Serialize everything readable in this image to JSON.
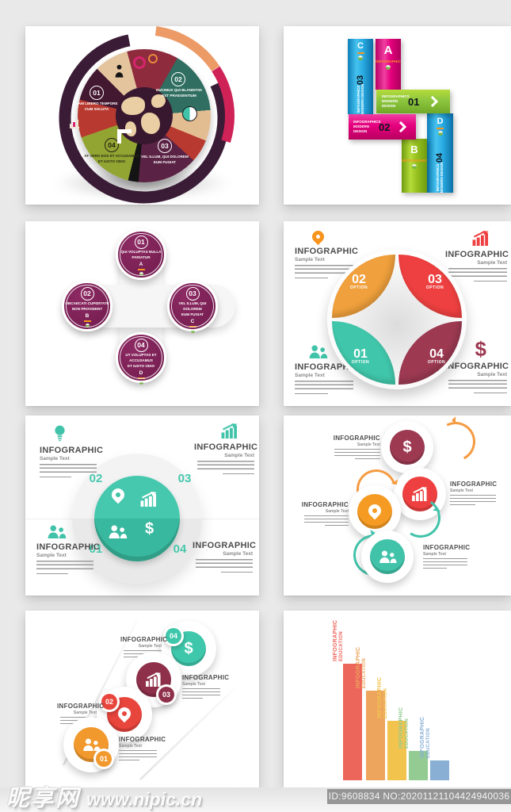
{
  "watermark": {
    "site": "昵享网",
    "url": "www.nipic.cn"
  },
  "id_bar": {
    "text": "ID:9608834 NO:20201121104424940036"
  },
  "glyphs": {
    "dollar": "$"
  },
  "pie_panel": {
    "items": [
      {
        "num": "01",
        "line1": "NAM LIBERO TEMPORE",
        "line2": "CUM SOLUTA"
      },
      {
        "num": "02",
        "line1": "DUCIMUS QUI BLANDITIIS",
        "line2": "EST PRAESENTIUM"
      },
      {
        "num": "03",
        "line1": "VEL ILLUM, QUI DOLOREM",
        "line2": "EUM FUGIAT"
      },
      {
        "num": "04",
        "line1": "AT VERO EOS ET ACCUSAMUS",
        "line2": "ET IUSTO ODIO"
      }
    ]
  },
  "ribbon_panel": {
    "brand_line1": "INFOGRAPHICS",
    "brand_line2": "MODERN DESIGN",
    "small_label": "INFOGRAPHIC",
    "ribbons": {
      "a": {
        "letter": "A"
      },
      "b": {
        "letter": "B"
      },
      "c": {
        "letter": "C",
        "num": "03"
      },
      "d": {
        "letter": "D",
        "num": "04"
      },
      "h1": {
        "num": "01"
      },
      "h2": {
        "num": "02"
      }
    }
  },
  "bubble_panel": {
    "items": [
      {
        "num": "01",
        "line1": "QUI VOLUPTAS NULLA",
        "line2": "PARIATUR",
        "letter": "A"
      },
      {
        "num": "02",
        "line1": "OBCAECATI CUPIDITATE",
        "line2": "NON PROVIDENT",
        "letter": "B"
      },
      {
        "num": "03",
        "line1": "VEL ILLUM, QUI DOLOREM",
        "line2": "EUM FUGIAT",
        "letter": "C"
      },
      {
        "num": "04",
        "line1": "UT VOLUPTAS ET ACCUSAMUS",
        "line2": "ET IUSTO ODIO",
        "letter": "D"
      }
    ]
  },
  "petal_panel": {
    "label": "INFOGRAPHIC",
    "sublabel": "Sample Text",
    "option": "OPTION",
    "nums": {
      "tl": "02",
      "tr": "03",
      "bl": "01",
      "br": "04"
    }
  },
  "sphere_panel": {
    "label": "INFOGRAPHIC",
    "sublabel": "Sample Text",
    "nums": {
      "tl": "02",
      "tr": "03",
      "bl": "01",
      "br": "04"
    }
  },
  "cycle_panel": {
    "label": "INFOGRAPHIC",
    "sublabel": "Sample Text"
  },
  "steps_panel": {
    "label": "INFOGRAPHIC",
    "sublabel": "Sample Text",
    "nums": [
      "01",
      "02",
      "03",
      "04"
    ]
  },
  "chart_data": {
    "type": "bar",
    "title": "",
    "xlabel": "",
    "ylabel": "",
    "categories": [
      "INFOGRAPHIC EDUCATION",
      "INFOGRAPHIC EDUCATION",
      "INFOGRAPHIC EDUCATION",
      "INFOGRAPHIC EDUCATION",
      "INFOGRAPHIC EDUCATION"
    ],
    "values": [
      147,
      113,
      75,
      37,
      25
    ],
    "unit": "relative px height (decorative template bars)",
    "colors": [
      "#ed665c",
      "#eda55e",
      "#f2c44d",
      "#93cb92",
      "#89afd4"
    ],
    "label_line1": "INFOGRAPHIC",
    "label_line2": "EDUCATION",
    "legend": false,
    "grid": false
  }
}
